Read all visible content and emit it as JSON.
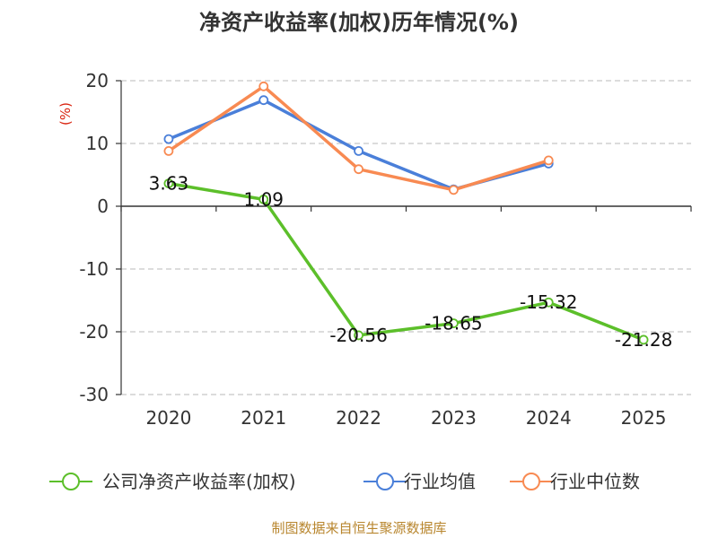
{
  "chart_data": {
    "type": "line",
    "title": "净资产收益率(加权)历年情况(%)",
    "ylabel": "(%)",
    "xlabel": "",
    "ylim": [
      -30,
      20
    ],
    "yticks": [
      20,
      10,
      0,
      -10,
      -20,
      -30
    ],
    "categories": [
      "2020",
      "2021",
      "2022",
      "2023",
      "2024",
      "2025"
    ],
    "grid": true,
    "legend": "bottom",
    "series": [
      {
        "name": "公司净资产收益率(加权)",
        "color": "#5cbf2a",
        "values": [
          3.63,
          1.09,
          -20.56,
          -18.65,
          -15.32,
          -21.28
        ],
        "labels": [
          "3.63",
          "1.09",
          "-20.56",
          "-18.65",
          "-15.32",
          "-21.28"
        ]
      },
      {
        "name": "行业均值",
        "color": "#4a7fd9",
        "values": [
          10.7,
          16.9,
          8.8,
          2.7,
          6.8,
          null
        ]
      },
      {
        "name": "行业中位数",
        "color": "#f88a52",
        "values": [
          8.8,
          19.1,
          5.9,
          2.6,
          7.3,
          null
        ]
      }
    ]
  },
  "source": "制图数据来自恒生聚源数据库"
}
